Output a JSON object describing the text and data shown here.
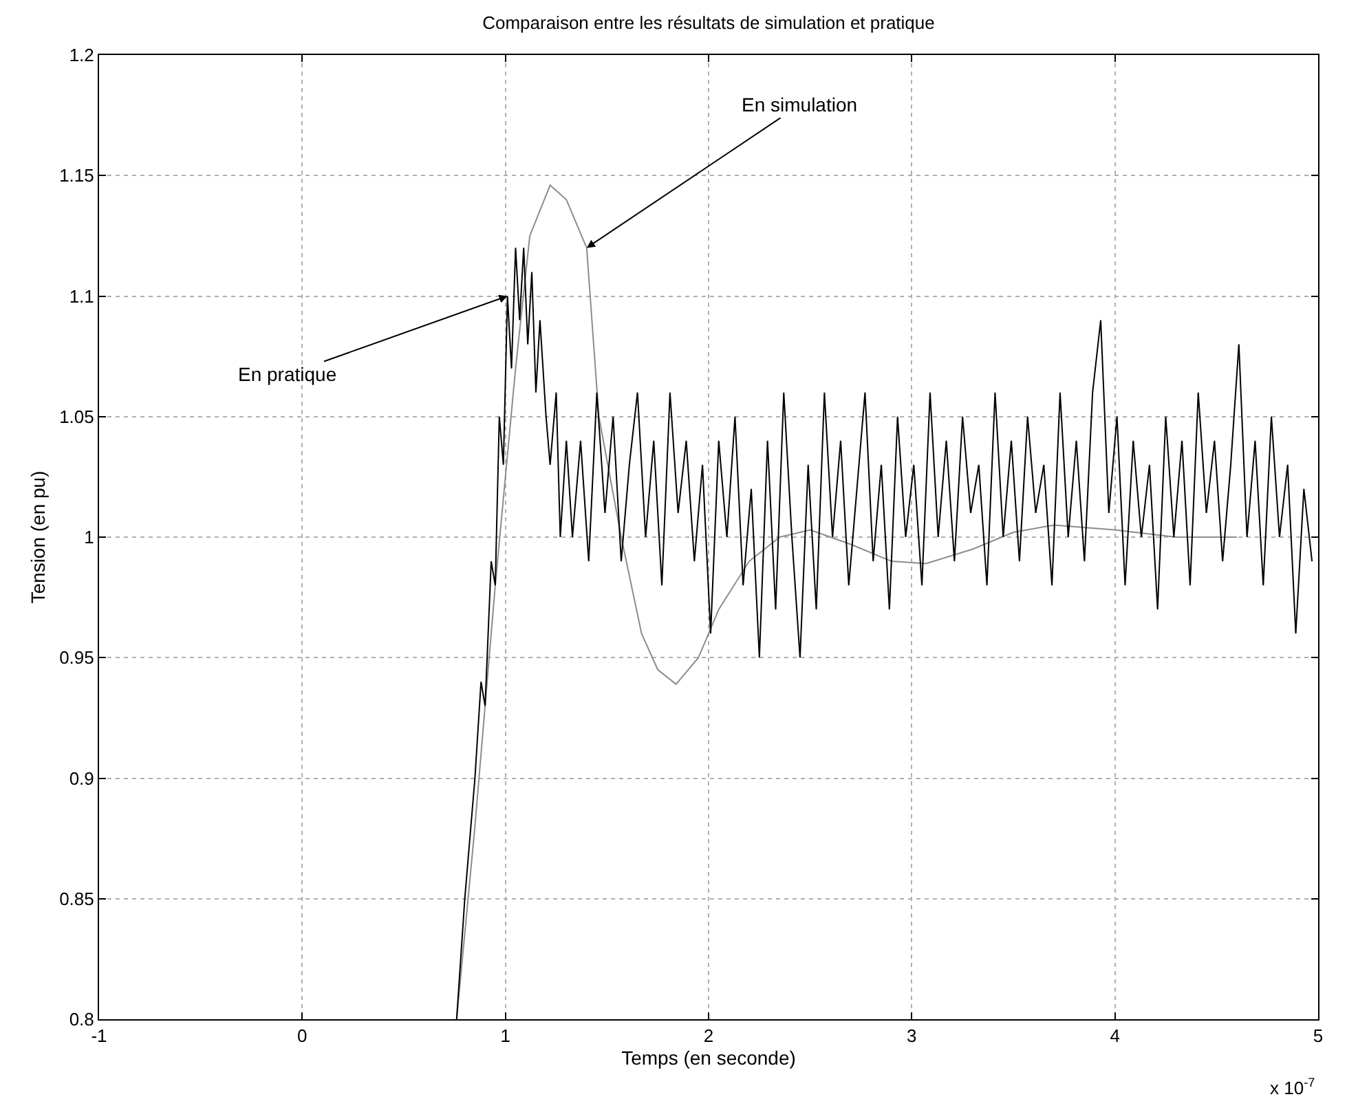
{
  "chart_data": {
    "type": "line",
    "title": "Comparaison entre les résultats de simulation et pratique",
    "xlabel": "Temps (en seconde)",
    "ylabel": "Tension (en pu)",
    "xlim": [
      -1,
      5
    ],
    "xticks": [
      -1,
      0,
      1,
      2,
      3,
      4,
      5
    ],
    "ylim": [
      0.8,
      1.2
    ],
    "yticks": [
      0.8,
      0.85,
      0.9,
      0.95,
      1,
      1.05,
      1.1,
      1.15,
      1.2
    ],
    "grid": true,
    "line_style": "solid",
    "series": [
      {
        "color": "#8c8c8c",
        "x": [
          0.76,
          0.85,
          0.95,
          1.05,
          1.12,
          1.22,
          1.3,
          1.4,
          1.46,
          1.57,
          1.67,
          1.75,
          1.84,
          1.95,
          2.05,
          2.2,
          2.35,
          2.5,
          2.7,
          2.9,
          3.07,
          3.3,
          3.5,
          3.7,
          4.0,
          4.3,
          4.6
        ],
        "values": [
          0.8,
          0.88,
          0.98,
          1.07,
          1.125,
          1.146,
          1.14,
          1.12,
          1.05,
          1.0,
          0.96,
          0.945,
          0.939,
          0.95,
          0.97,
          0.99,
          1.0,
          1.003,
          0.997,
          0.99,
          0.989,
          0.995,
          1.002,
          1.005,
          1.003,
          1.0,
          1.0
        ]
      },
      {
        "color": "#000000",
        "x": [
          0.76,
          0.8,
          0.85,
          0.88,
          0.9,
          0.93,
          0.95,
          0.97,
          0.99,
          1.01,
          1.03,
          1.05,
          1.07,
          1.09,
          1.11,
          1.13,
          1.15,
          1.17,
          1.2,
          1.22,
          1.25,
          1.27,
          1.3,
          1.33,
          1.37,
          1.41,
          1.45,
          1.49,
          1.53,
          1.57,
          1.61,
          1.65,
          1.69,
          1.73,
          1.77,
          1.81,
          1.85,
          1.89,
          1.93,
          1.97,
          2.01,
          2.05,
          2.09,
          2.13,
          2.17,
          2.21,
          2.25,
          2.29,
          2.33,
          2.37,
          2.41,
          2.45,
          2.49,
          2.53,
          2.57,
          2.61,
          2.65,
          2.69,
          2.73,
          2.77,
          2.81,
          2.85,
          2.89,
          2.93,
          2.97,
          3.01,
          3.05,
          3.09,
          3.13,
          3.17,
          3.21,
          3.25,
          3.29,
          3.33,
          3.37,
          3.41,
          3.45,
          3.49,
          3.53,
          3.57,
          3.61,
          3.65,
          3.69,
          3.73,
          3.77,
          3.81,
          3.85,
          3.89,
          3.93,
          3.97,
          4.01,
          4.05,
          4.09,
          4.13,
          4.17,
          4.21,
          4.25,
          4.29,
          4.33,
          4.37,
          4.41,
          4.45,
          4.49,
          4.53,
          4.57,
          4.61,
          4.65,
          4.69,
          4.73,
          4.77,
          4.81,
          4.85,
          4.89,
          4.93,
          4.97
        ],
        "values": [
          0.8,
          0.85,
          0.9,
          0.94,
          0.93,
          0.99,
          0.98,
          1.05,
          1.03,
          1.1,
          1.07,
          1.12,
          1.09,
          1.12,
          1.08,
          1.11,
          1.06,
          1.09,
          1.05,
          1.03,
          1.06,
          1.0,
          1.04,
          1.0,
          1.04,
          0.99,
          1.06,
          1.01,
          1.05,
          0.99,
          1.03,
          1.06,
          1.0,
          1.04,
          0.98,
          1.06,
          1.01,
          1.04,
          0.99,
          1.03,
          0.96,
          1.04,
          1.0,
          1.05,
          0.98,
          1.02,
          0.95,
          1.04,
          0.97,
          1.06,
          1.0,
          0.95,
          1.03,
          0.97,
          1.06,
          1.0,
          1.04,
          0.98,
          1.02,
          1.06,
          0.99,
          1.03,
          0.97,
          1.05,
          1.0,
          1.03,
          0.98,
          1.06,
          1.0,
          1.04,
          0.99,
          1.05,
          1.01,
          1.03,
          0.98,
          1.06,
          1.0,
          1.04,
          0.99,
          1.05,
          1.01,
          1.03,
          0.98,
          1.06,
          1.0,
          1.04,
          0.99,
          1.06,
          1.09,
          1.01,
          1.05,
          0.98,
          1.04,
          1.0,
          1.03,
          0.97,
          1.05,
          1.0,
          1.04,
          0.98,
          1.06,
          1.01,
          1.04,
          0.99,
          1.03,
          1.08,
          1.0,
          1.04,
          0.98,
          1.05,
          1.0,
          1.03,
          0.96,
          1.02,
          0.99
        ]
      }
    ],
    "annotations": [
      {
        "text": "En simulation",
        "x": 1.4,
        "y": 1.12
      },
      {
        "text": "En pratique",
        "x": 1.01,
        "y": 1.1
      },
      "x 10$^{-7}$"
    ]
  }
}
